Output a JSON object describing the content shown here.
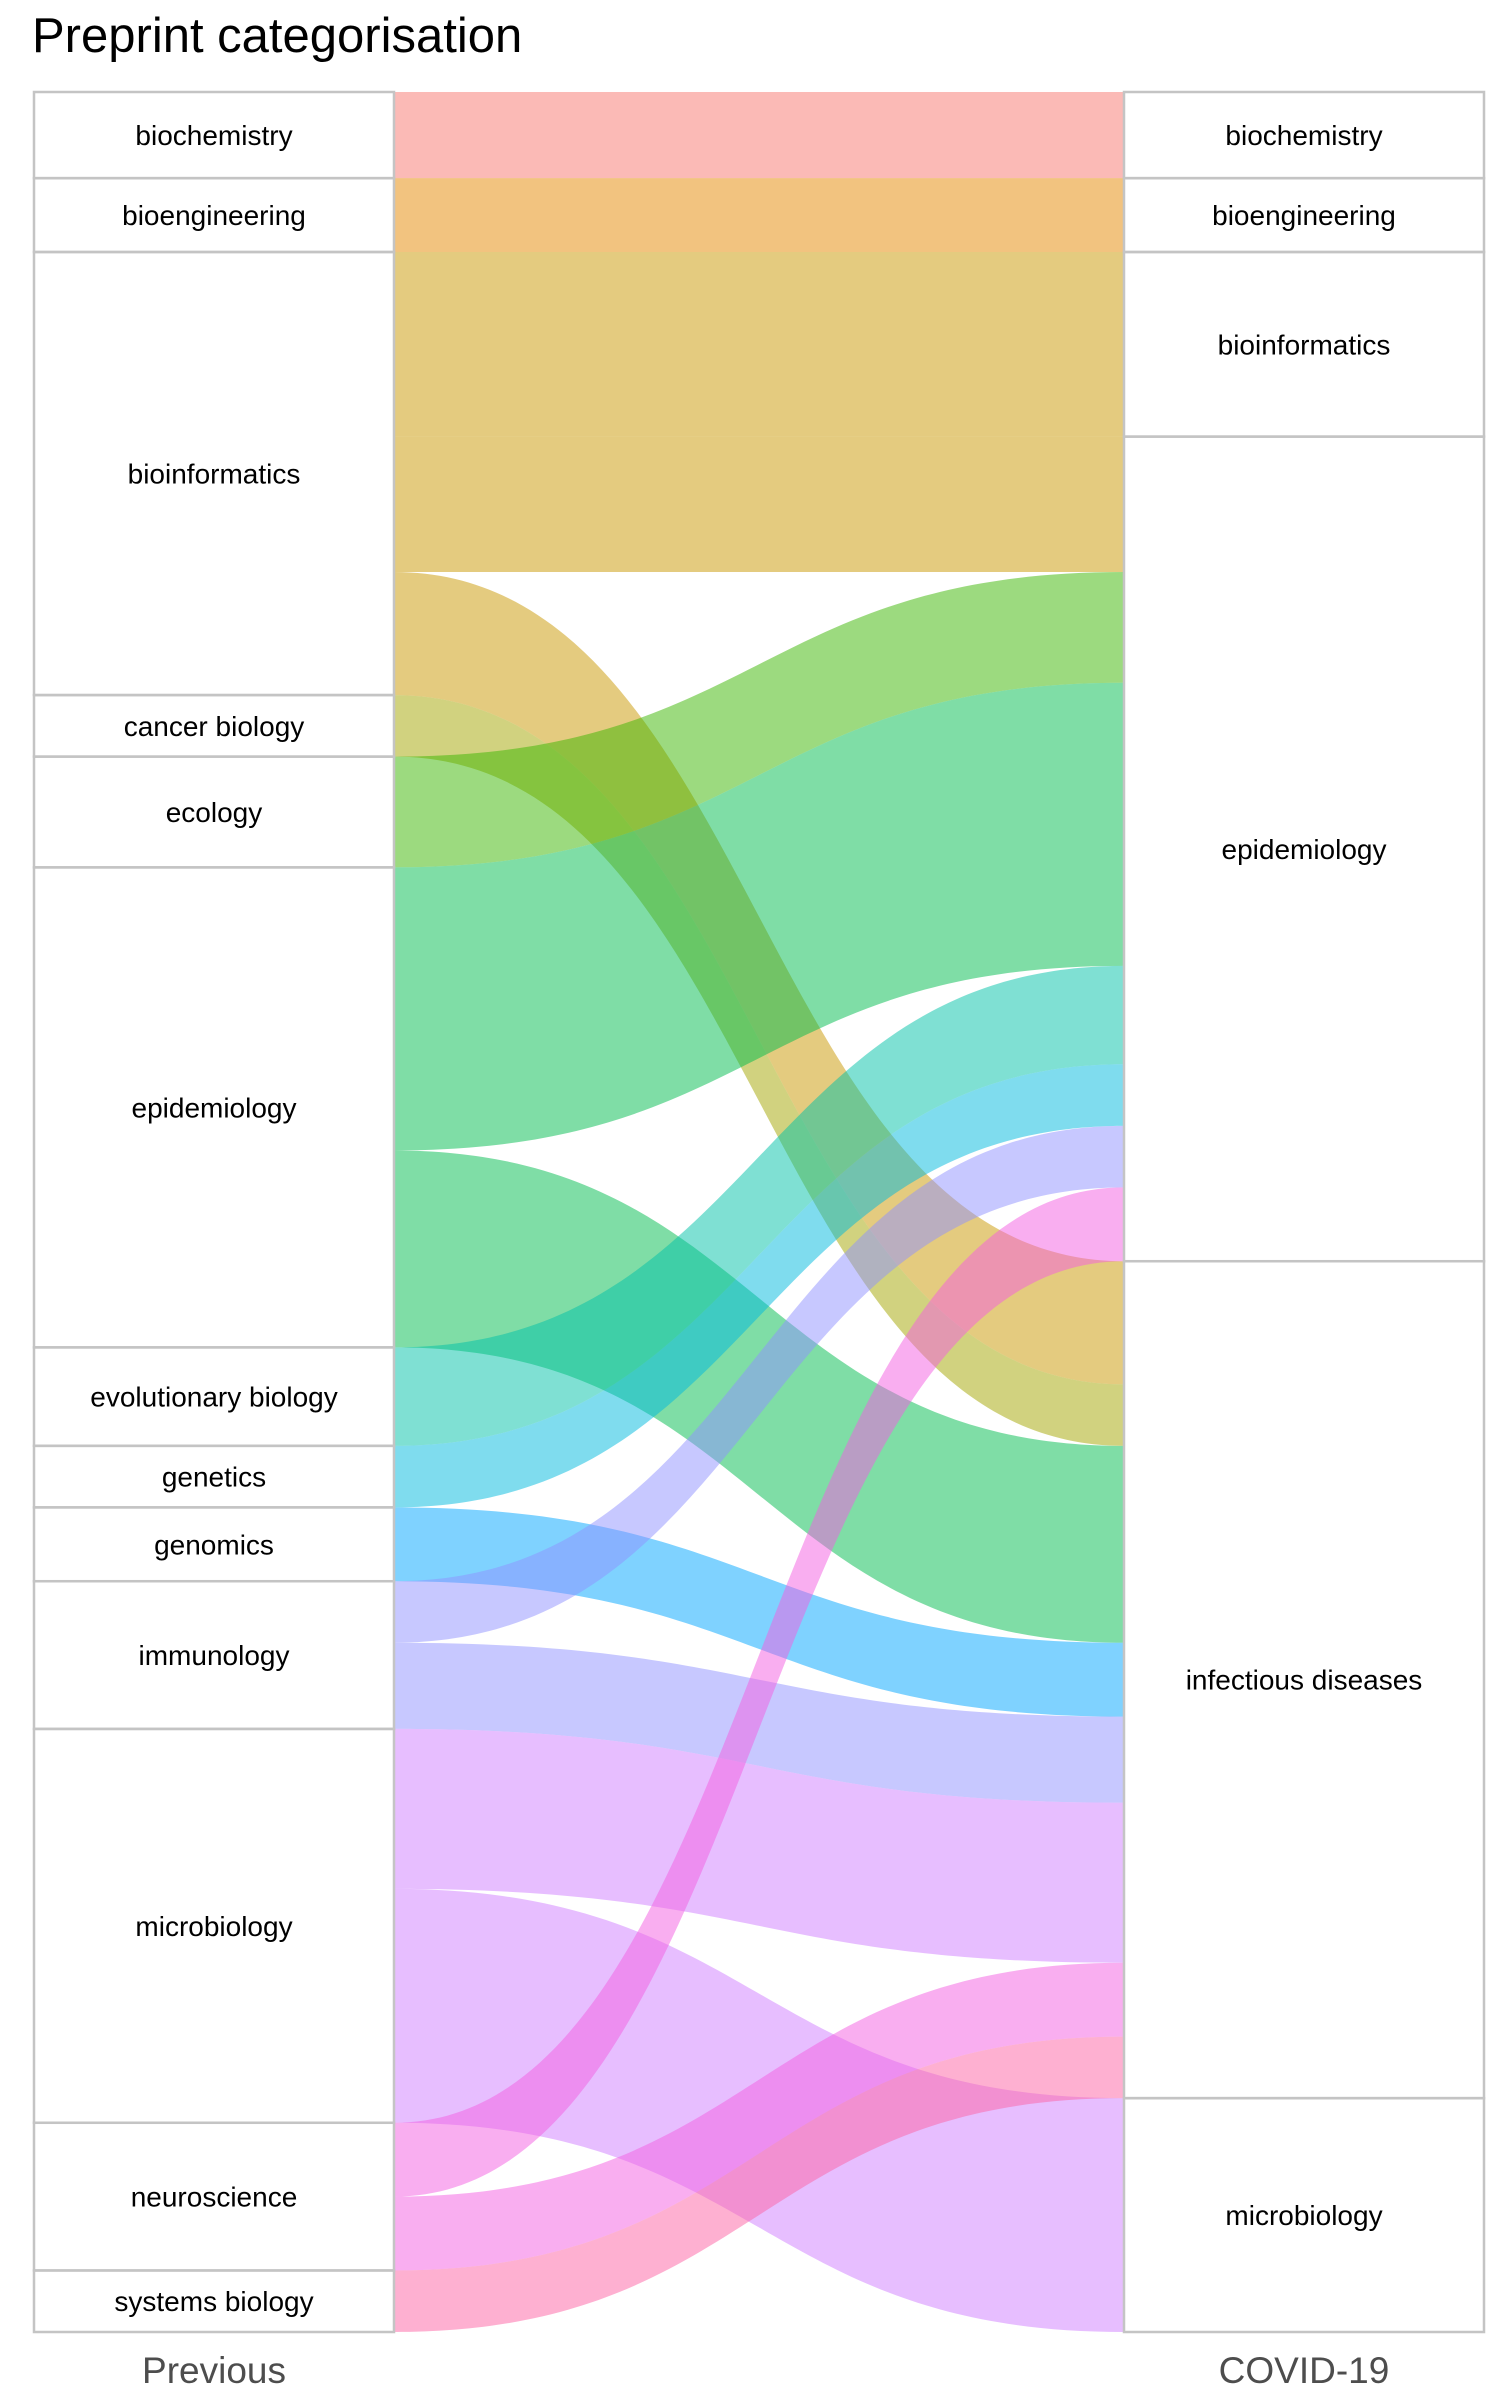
{
  "chart_data": {
    "type": "alluvial",
    "title": "Preprint categorisation",
    "axes": [
      "Previous",
      "COVID-19"
    ],
    "previous_categories": [
      {
        "name": "biochemistry",
        "count": 21
      },
      {
        "name": "bioengineering",
        "count": 18
      },
      {
        "name": "bioinformatics",
        "count": 108
      },
      {
        "name": "cancer biology",
        "count": 15
      },
      {
        "name": "ecology",
        "count": 27
      },
      {
        "name": "epidemiology",
        "count": 117
      },
      {
        "name": "evolutionary biology",
        "count": 24
      },
      {
        "name": "genetics",
        "count": 15
      },
      {
        "name": "genomics",
        "count": 18
      },
      {
        "name": "immunology",
        "count": 36
      },
      {
        "name": "microbiology",
        "count": 96
      },
      {
        "name": "neuroscience",
        "count": 36
      },
      {
        "name": "systems biology",
        "count": 15
      }
    ],
    "covid_categories": [
      {
        "name": "biochemistry",
        "count": 21
      },
      {
        "name": "bioengineering",
        "count": 18
      },
      {
        "name": "bioinformatics",
        "count": 45
      },
      {
        "name": "epidemiology",
        "count": 201
      },
      {
        "name": "infectious diseases",
        "count": 204
      },
      {
        "name": "microbiology",
        "count": 57
      }
    ],
    "flows": [
      {
        "from": "biochemistry",
        "to": "biochemistry",
        "value": 21
      },
      {
        "from": "bioengineering",
        "to": "bioengineering",
        "value": 18
      },
      {
        "from": "bioinformatics",
        "to": "bioinformatics",
        "value": 45
      },
      {
        "from": "bioinformatics",
        "to": "epidemiology",
        "value": 33
      },
      {
        "from": "bioinformatics",
        "to": "infectious diseases",
        "value": 30
      },
      {
        "from": "cancer biology",
        "to": "infectious diseases",
        "value": 15
      },
      {
        "from": "ecology",
        "to": "epidemiology",
        "value": 27
      },
      {
        "from": "epidemiology",
        "to": "epidemiology",
        "value": 69
      },
      {
        "from": "epidemiology",
        "to": "infectious diseases",
        "value": 48
      },
      {
        "from": "evolutionary biology",
        "to": "epidemiology",
        "value": 24
      },
      {
        "from": "genetics",
        "to": "epidemiology",
        "value": 15
      },
      {
        "from": "genomics",
        "to": "infectious diseases",
        "value": 18
      },
      {
        "from": "immunology",
        "to": "epidemiology",
        "value": 15
      },
      {
        "from": "immunology",
        "to": "infectious diseases",
        "value": 21
      },
      {
        "from": "microbiology",
        "to": "infectious diseases",
        "value": 39
      },
      {
        "from": "microbiology",
        "to": "microbiology",
        "value": 57
      },
      {
        "from": "neuroscience",
        "to": "epidemiology",
        "value": 18
      },
      {
        "from": "neuroscience",
        "to": "infectious diseases",
        "value": 18
      },
      {
        "from": "systems biology",
        "to": "infectious diseases",
        "value": 15
      }
    ],
    "colors": {
      "biochemistry": "#f8766d",
      "bioengineering": "#e58700",
      "bioinformatics": "#c99800",
      "cancer biology": "#a3a500",
      "ecology": "#39b600",
      "epidemiology": "#00bb4e",
      "evolutionary biology": "#00c1a7",
      "genetics": "#00bade",
      "genomics": "#00a5ff",
      "immunology": "#8f91ff",
      "microbiology": "#cf7dff",
      "neuroscience": "#f35ee2",
      "systems biology": "#fd61a4"
    },
    "flow_opacity": 0.5,
    "grid": false,
    "legend": "none"
  }
}
